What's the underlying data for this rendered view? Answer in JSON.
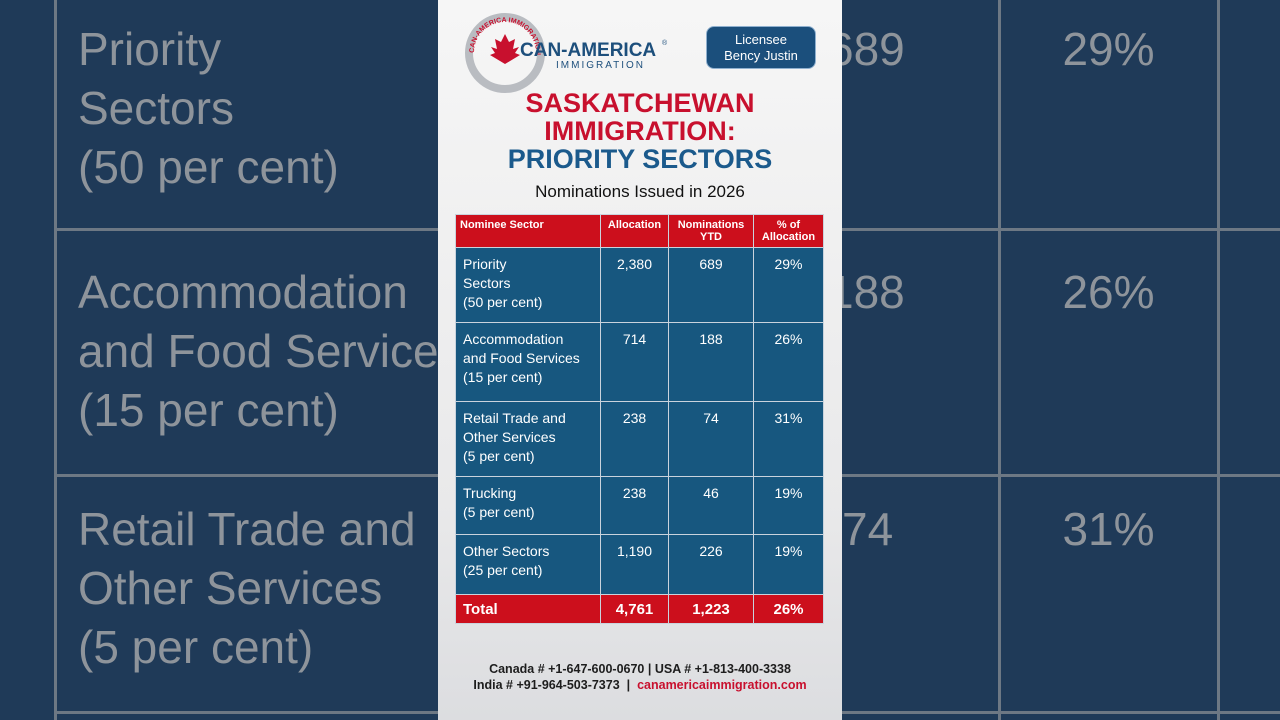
{
  "logo": {
    "name": "CAN-AMERICA",
    "registered": "®",
    "tagline": "IMMIGRATION",
    "ring_text": "CAN-AMERICA IMMIGRATION"
  },
  "license": {
    "line1": "Licensee",
    "line2": "Bency Justin"
  },
  "title": {
    "line1": "SASKATCHEWAN",
    "line2": "IMMIGRATION:",
    "line3": "PRIORITY SECTORS"
  },
  "subtitle": "Nominations Issued in 2026",
  "table": {
    "columns": [
      "Nominee Sector",
      "Allocation",
      "Nominations\nYTD",
      "% of\nAllocation"
    ],
    "rows": [
      [
        "Priority\nSectors\n(50 per cent)",
        "2,380",
        "689",
        "29%"
      ],
      [
        "Accommodation\nand Food Services\n(15 per cent)",
        "714",
        "188",
        "26%"
      ],
      [
        "Retail Trade and\nOther Services\n(5 per cent)",
        "238",
        "74",
        "31%"
      ],
      [
        "Trucking\n(5 per cent)",
        "238",
        "46",
        "19%"
      ],
      [
        "Other Sectors\n(25 per cent)",
        "1,190",
        "226",
        "19%"
      ]
    ],
    "total": [
      "Total",
      "4,761",
      "1,223",
      "26%"
    ]
  },
  "footer": {
    "line1": "Canada # +1-647-600-0670  | USA # +1-813-400-3338",
    "india": "India # +91-964-503-7373",
    "separator": "|",
    "website": "canamericaimmigration.com"
  }
}
